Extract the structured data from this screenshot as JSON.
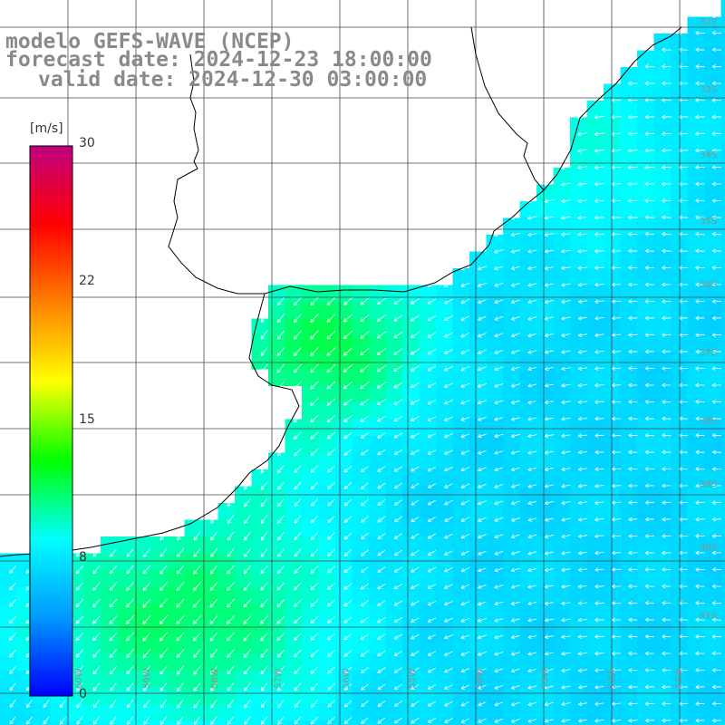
{
  "title": {
    "line1": "modelo GEFS-WAVE (NCEP)",
    "line2": "forecast date: 2024-12-23 18:00:00",
    "line3": "valid date: 2024-12-30 03:00:00"
  },
  "colorbar": {
    "unit": "[m/s]",
    "ticks": [
      "0",
      "8",
      "15",
      "22",
      "30"
    ],
    "colors": [
      "#0000ff",
      "#0099ff",
      "#00ffff",
      "#00ff00",
      "#ffff00",
      "#ff8000",
      "#ff0000",
      "#c00080"
    ]
  },
  "grid_labels": {
    "lat": [
      "32S",
      "33S",
      "34S",
      "35S",
      "36S",
      "37S",
      "38S",
      "39S",
      "40S",
      "41S"
    ],
    "lon": [
      "60W",
      "59W",
      "58W",
      "57W",
      "56W",
      "55W",
      "54W",
      "53W",
      "52W",
      "51W"
    ]
  },
  "colors": {
    "land": "#ffffff",
    "coastline": "#000000",
    "grid": "#4a4a4a",
    "arrows": "#ffffff",
    "title_text": "#8a8a8a"
  },
  "field": {
    "variable": "wind speed",
    "units": "m/s",
    "range": [
      0,
      30
    ],
    "typical_values": {
      "rio_de_la_plata": 11.5,
      "shelf_south": 11,
      "open_ocean_east": 6.5,
      "coast_north": 8.5
    },
    "arrow_direction": "from northeast toward southwest"
  }
}
